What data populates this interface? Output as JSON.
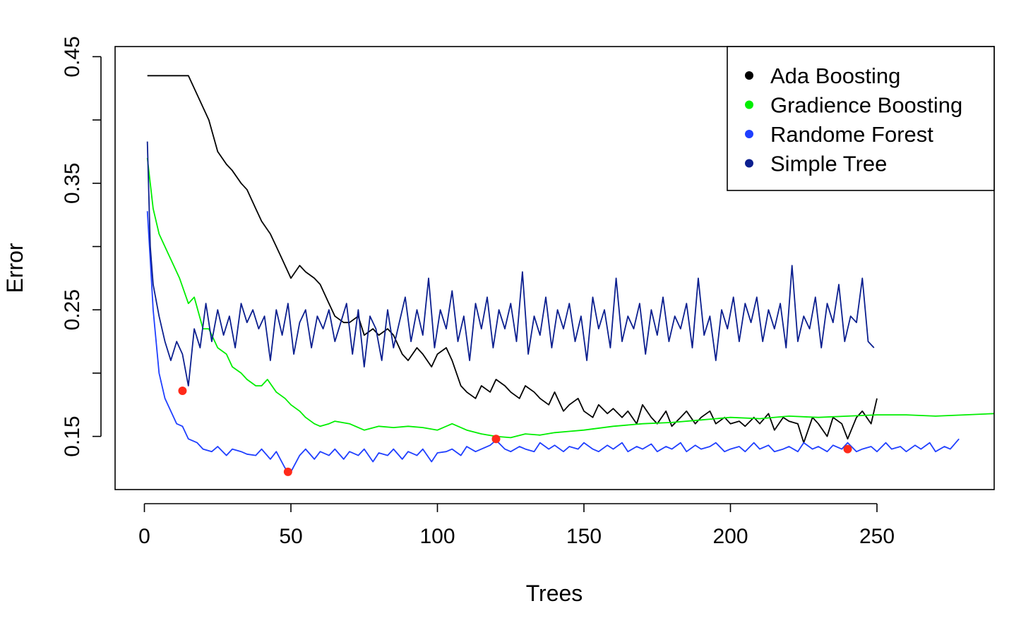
{
  "chart_data": {
    "type": "line",
    "title": "",
    "xlabel": "Trees",
    "ylabel": "Error",
    "xlim": [
      -10,
      290
    ],
    "ylim": [
      0.108,
      0.458
    ],
    "x_ticks": [
      0,
      50,
      100,
      150,
      200,
      250
    ],
    "x_tick_labels": [
      "0",
      "50",
      "100",
      "150",
      "200",
      "250"
    ],
    "y_ticks": [
      0.15,
      0.2,
      0.25,
      0.3,
      0.35,
      0.4,
      0.45
    ],
    "y_tick_labels": [
      "0.15",
      "",
      "0.25",
      "",
      "0.35",
      "",
      "0.45"
    ],
    "grid": false,
    "legend_position": "top-right",
    "legend": [
      "Ada Boosting",
      "Gradience Boosting",
      "Randome Forest",
      "Simple Tree"
    ],
    "series": [
      {
        "name": "Ada Boosting",
        "color": "#000000",
        "x": [
          1,
          5,
          10,
          15,
          17,
          20,
          22,
          25,
          28,
          30,
          33,
          35,
          38,
          40,
          43,
          45,
          47,
          50,
          53,
          55,
          58,
          60,
          63,
          65,
          68,
          70,
          73,
          75,
          78,
          80,
          83,
          85,
          88,
          90,
          93,
          95,
          98,
          100,
          103,
          105,
          108,
          110,
          113,
          115,
          118,
          120,
          123,
          125,
          128,
          130,
          133,
          135,
          138,
          140,
          143,
          145,
          148,
          150,
          153,
          155,
          158,
          160,
          163,
          165,
          168,
          170,
          173,
          175,
          178,
          180,
          183,
          185,
          188,
          190,
          193,
          195,
          198,
          200,
          203,
          205,
          208,
          210,
          213,
          215,
          218,
          220,
          223,
          225,
          228,
          230,
          233,
          235,
          238,
          240,
          243,
          245,
          248,
          250
        ],
        "values": [
          0.435,
          0.435,
          0.435,
          0.435,
          0.425,
          0.41,
          0.4,
          0.375,
          0.365,
          0.36,
          0.35,
          0.345,
          0.33,
          0.32,
          0.31,
          0.3,
          0.29,
          0.275,
          0.285,
          0.28,
          0.275,
          0.27,
          0.255,
          0.245,
          0.24,
          0.24,
          0.245,
          0.23,
          0.235,
          0.23,
          0.235,
          0.23,
          0.215,
          0.21,
          0.22,
          0.215,
          0.205,
          0.215,
          0.22,
          0.21,
          0.19,
          0.185,
          0.18,
          0.19,
          0.185,
          0.195,
          0.19,
          0.185,
          0.18,
          0.19,
          0.185,
          0.18,
          0.175,
          0.185,
          0.17,
          0.175,
          0.18,
          0.17,
          0.165,
          0.175,
          0.168,
          0.172,
          0.165,
          0.17,
          0.16,
          0.175,
          0.165,
          0.16,
          0.17,
          0.158,
          0.165,
          0.17,
          0.16,
          0.165,
          0.17,
          0.16,
          0.165,
          0.16,
          0.162,
          0.158,
          0.165,
          0.16,
          0.168,
          0.155,
          0.165,
          0.162,
          0.16,
          0.145,
          0.165,
          0.16,
          0.15,
          0.165,
          0.16,
          0.148,
          0.165,
          0.17,
          0.16,
          0.18
        ]
      },
      {
        "name": "Gradience Boosting",
        "color": "#00ee00",
        "x": [
          1,
          3,
          5,
          8,
          10,
          12,
          15,
          17,
          20,
          22,
          25,
          28,
          30,
          33,
          35,
          38,
          40,
          42,
          45,
          48,
          50,
          53,
          55,
          58,
          60,
          63,
          65,
          70,
          75,
          80,
          85,
          90,
          95,
          100,
          105,
          110,
          115,
          120,
          125,
          130,
          135,
          140,
          145,
          150,
          160,
          170,
          180,
          190,
          200,
          210,
          220,
          230,
          240,
          250,
          260,
          270,
          280,
          290
        ],
        "values": [
          0.37,
          0.33,
          0.31,
          0.295,
          0.285,
          0.275,
          0.255,
          0.26,
          0.235,
          0.235,
          0.22,
          0.215,
          0.205,
          0.2,
          0.195,
          0.19,
          0.19,
          0.195,
          0.185,
          0.18,
          0.175,
          0.17,
          0.165,
          0.16,
          0.158,
          0.16,
          0.162,
          0.16,
          0.155,
          0.158,
          0.157,
          0.158,
          0.157,
          0.155,
          0.16,
          0.155,
          0.152,
          0.15,
          0.149,
          0.152,
          0.151,
          0.153,
          0.154,
          0.155,
          0.158,
          0.16,
          0.161,
          0.163,
          0.165,
          0.164,
          0.166,
          0.165,
          0.166,
          0.167,
          0.167,
          0.166,
          0.167,
          0.168
        ]
      },
      {
        "name": "Randome Forest",
        "color": "#1f3fff",
        "x": [
          1,
          2,
          3,
          5,
          7,
          9,
          11,
          13,
          15,
          18,
          20,
          23,
          25,
          28,
          30,
          33,
          35,
          38,
          40,
          43,
          45,
          48,
          50,
          53,
          55,
          58,
          60,
          63,
          65,
          68,
          70,
          73,
          75,
          78,
          80,
          83,
          85,
          88,
          90,
          93,
          95,
          98,
          100,
          103,
          105,
          108,
          110,
          113,
          115,
          118,
          120,
          123,
          125,
          128,
          130,
          133,
          135,
          138,
          140,
          143,
          145,
          148,
          150,
          153,
          155,
          158,
          160,
          163,
          165,
          168,
          170,
          173,
          175,
          178,
          180,
          183,
          185,
          188,
          190,
          193,
          195,
          198,
          200,
          203,
          205,
          208,
          210,
          213,
          215,
          218,
          220,
          223,
          225,
          228,
          230,
          233,
          235,
          238,
          240,
          243,
          245,
          248,
          250,
          253,
          255,
          258,
          260,
          263,
          265,
          268,
          270,
          273,
          275,
          278
        ],
        "values": [
          0.328,
          0.29,
          0.25,
          0.2,
          0.18,
          0.17,
          0.16,
          0.158,
          0.148,
          0.145,
          0.14,
          0.138,
          0.142,
          0.135,
          0.14,
          0.138,
          0.136,
          0.135,
          0.14,
          0.132,
          0.138,
          0.125,
          0.122,
          0.135,
          0.14,
          0.132,
          0.138,
          0.135,
          0.14,
          0.132,
          0.138,
          0.135,
          0.14,
          0.13,
          0.137,
          0.135,
          0.14,
          0.132,
          0.138,
          0.135,
          0.14,
          0.13,
          0.137,
          0.138,
          0.14,
          0.135,
          0.142,
          0.138,
          0.14,
          0.143,
          0.147,
          0.14,
          0.138,
          0.142,
          0.14,
          0.138,
          0.145,
          0.14,
          0.143,
          0.138,
          0.142,
          0.14,
          0.145,
          0.14,
          0.138,
          0.143,
          0.14,
          0.145,
          0.138,
          0.142,
          0.14,
          0.144,
          0.138,
          0.142,
          0.14,
          0.145,
          0.138,
          0.143,
          0.14,
          0.142,
          0.145,
          0.138,
          0.14,
          0.142,
          0.138,
          0.145,
          0.14,
          0.143,
          0.138,
          0.14,
          0.142,
          0.138,
          0.145,
          0.14,
          0.142,
          0.138,
          0.143,
          0.14,
          0.145,
          0.138,
          0.14,
          0.142,
          0.138,
          0.145,
          0.14,
          0.142,
          0.138,
          0.143,
          0.14,
          0.145,
          0.138,
          0.142,
          0.14,
          0.148
        ]
      },
      {
        "name": "Simple Tree",
        "color": "#0b1f8f",
        "x": [
          1,
          2,
          3,
          5,
          7,
          9,
          11,
          13,
          15,
          17,
          19,
          21,
          23,
          25,
          27,
          29,
          31,
          33,
          35,
          37,
          39,
          41,
          43,
          45,
          47,
          49,
          51,
          53,
          55,
          57,
          59,
          61,
          63,
          65,
          67,
          69,
          71,
          73,
          75,
          77,
          79,
          81,
          83,
          85,
          87,
          89,
          91,
          93,
          95,
          97,
          99,
          101,
          103,
          105,
          107,
          109,
          111,
          113,
          115,
          117,
          119,
          121,
          123,
          125,
          127,
          129,
          131,
          133,
          135,
          137,
          139,
          141,
          143,
          145,
          147,
          149,
          151,
          153,
          155,
          157,
          159,
          161,
          163,
          165,
          167,
          169,
          171,
          173,
          175,
          177,
          179,
          181,
          183,
          185,
          187,
          189,
          191,
          193,
          195,
          197,
          199,
          201,
          203,
          205,
          207,
          209,
          211,
          213,
          215,
          217,
          219,
          221,
          223,
          225,
          227,
          229,
          231,
          233,
          235,
          237,
          239,
          241,
          243,
          245,
          247,
          249
        ],
        "values": [
          0.383,
          0.3,
          0.27,
          0.245,
          0.225,
          0.21,
          0.225,
          0.215,
          0.19,
          0.235,
          0.22,
          0.255,
          0.225,
          0.25,
          0.23,
          0.245,
          0.22,
          0.255,
          0.24,
          0.25,
          0.235,
          0.245,
          0.21,
          0.25,
          0.23,
          0.255,
          0.215,
          0.24,
          0.25,
          0.22,
          0.245,
          0.235,
          0.25,
          0.225,
          0.24,
          0.255,
          0.215,
          0.25,
          0.205,
          0.245,
          0.235,
          0.21,
          0.25,
          0.22,
          0.24,
          0.26,
          0.225,
          0.25,
          0.23,
          0.275,
          0.22,
          0.25,
          0.235,
          0.265,
          0.225,
          0.245,
          0.21,
          0.255,
          0.235,
          0.26,
          0.22,
          0.25,
          0.235,
          0.255,
          0.225,
          0.28,
          0.215,
          0.245,
          0.23,
          0.26,
          0.22,
          0.25,
          0.235,
          0.255,
          0.225,
          0.245,
          0.21,
          0.26,
          0.235,
          0.25,
          0.22,
          0.275,
          0.225,
          0.245,
          0.235,
          0.255,
          0.215,
          0.25,
          0.23,
          0.26,
          0.225,
          0.245,
          0.235,
          0.255,
          0.22,
          0.275,
          0.23,
          0.245,
          0.21,
          0.25,
          0.235,
          0.26,
          0.225,
          0.255,
          0.24,
          0.26,
          0.225,
          0.25,
          0.235,
          0.255,
          0.22,
          0.285,
          0.225,
          0.245,
          0.235,
          0.26,
          0.22,
          0.255,
          0.24,
          0.27,
          0.225,
          0.245,
          0.24,
          0.275,
          0.225,
          0.22
        ]
      }
    ],
    "highlight_points": [
      {
        "x": 13,
        "y": 0.186
      },
      {
        "x": 49,
        "y": 0.122
      },
      {
        "x": 120,
        "y": 0.148
      },
      {
        "x": 240,
        "y": 0.14
      }
    ],
    "highlight_color": "#ff2a1a"
  }
}
